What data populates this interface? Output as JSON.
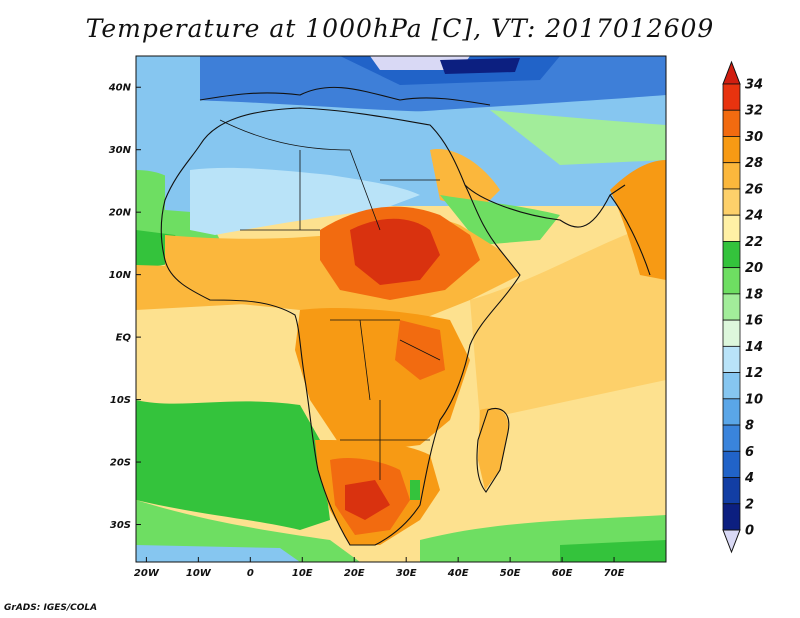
{
  "title": "Temperature at 1000hPa [C], VT: 2017012609",
  "credit": "GrADS: IGES/COLA",
  "map": {
    "lon_range": [
      -22,
      80
    ],
    "lat_range": [
      -36,
      45
    ],
    "lat_ticks": [
      {
        "value": 40,
        "label": "40N"
      },
      {
        "value": 30,
        "label": "30N"
      },
      {
        "value": 20,
        "label": "20N"
      },
      {
        "value": 10,
        "label": "10N"
      },
      {
        "value": 0,
        "label": "EQ"
      },
      {
        "value": -10,
        "label": "10S"
      },
      {
        "value": -20,
        "label": "20S"
      },
      {
        "value": -30,
        "label": "30S"
      }
    ],
    "lon_ticks": [
      {
        "value": -20,
        "label": "20W"
      },
      {
        "value": -10,
        "label": "10W"
      },
      {
        "value": 0,
        "label": "0"
      },
      {
        "value": 10,
        "label": "10E"
      },
      {
        "value": 20,
        "label": "20E"
      },
      {
        "value": 30,
        "label": "30E"
      },
      {
        "value": 40,
        "label": "40E"
      },
      {
        "value": 50,
        "label": "50E"
      },
      {
        "value": 60,
        "label": "60E"
      },
      {
        "value": 70,
        "label": "70E"
      }
    ]
  },
  "colorbar": {
    "levels": [
      "34",
      "32",
      "30",
      "28",
      "26",
      "24",
      "22",
      "20",
      "18",
      "16",
      "14",
      "12",
      "10",
      "8",
      "6",
      "4",
      "2",
      "0"
    ],
    "colors": [
      "#e8330f",
      "#f26b10",
      "#f79a14",
      "#fbb73c",
      "#fdd06a",
      "#fff0a5",
      "#34c33c",
      "#6ede62",
      "#a2ed9a",
      "#ddf7dc",
      "#b9e3f8",
      "#86c6f0",
      "#5aa6e8",
      "#3a84dc",
      "#2163c8",
      "#123ea4",
      "#0c1f80"
    ],
    "top_color": "#d11e10",
    "bottom_color": "#d9d9f5"
  },
  "colors": {
    "ocean_north": "#7ec0ee",
    "ocean_tropical": "#fde18f",
    "ocean_south_green": "#52d454",
    "europe_blue": "#3e7fd8",
    "sahara_light": "#b9e3f8",
    "hot_core": "#d9320f"
  }
}
